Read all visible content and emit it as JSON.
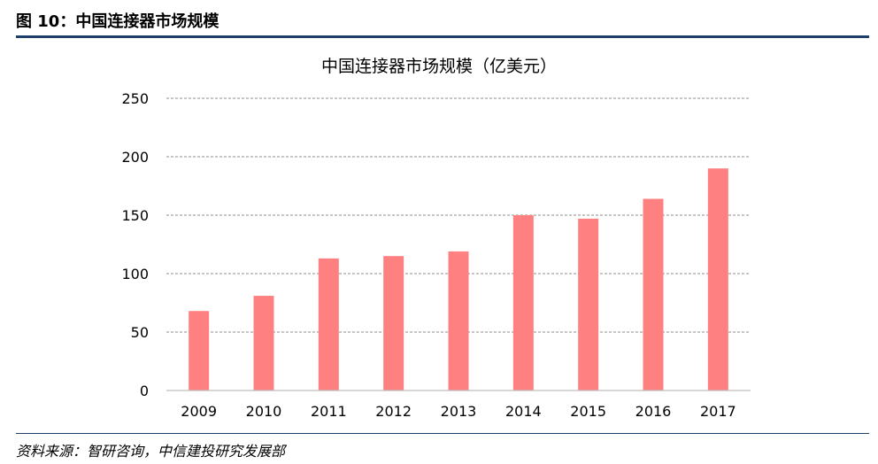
{
  "figure": {
    "label": "图 10：中国连接器市场规模",
    "source": "资料来源：智研咨询，中信建投研究发展部"
  },
  "colors": {
    "bar": "#ff8080",
    "rule": "#1f3f6b",
    "grid": "#8c8c8c",
    "axis": "#bfbfbf"
  },
  "chart_data": {
    "type": "bar",
    "title": "中国连接器市场规模（亿美元）",
    "xlabel": "",
    "ylabel": "",
    "categories": [
      "2009",
      "2010",
      "2011",
      "2012",
      "2013",
      "2014",
      "2015",
      "2016",
      "2017"
    ],
    "values": [
      68,
      81,
      113,
      115,
      119,
      150,
      147,
      164,
      190
    ],
    "ylim": [
      0,
      250
    ],
    "yticks": [
      0,
      50,
      100,
      150,
      200,
      250
    ],
    "grid": true,
    "grid_style": "dashed",
    "legend": "none"
  }
}
